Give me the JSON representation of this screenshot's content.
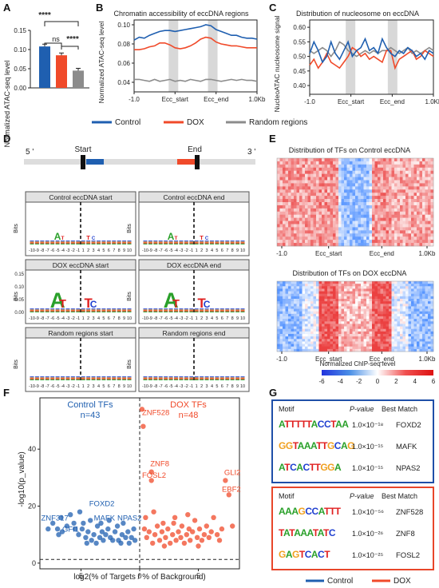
{
  "panels": {
    "A": "A",
    "B": "B",
    "C": "C",
    "D": "D",
    "E": "E",
    "F": "F",
    "G": "G"
  },
  "colors": {
    "control": "#1f5fb0",
    "dox": "#f04a2a",
    "random": "#8c8c8c",
    "shade": "#d8d8d8"
  },
  "chart_data": [
    {
      "id": "A",
      "type": "bar",
      "ylabel": "Normalized ATAC-seq level",
      "categories": [
        "Control",
        "DOX",
        "Random regions"
      ],
      "values": [
        0.108,
        0.085,
        0.045
      ],
      "ylim": [
        0,
        0.15
      ],
      "yticks": [
        "0.00",
        "0.05",
        "0.10",
        "0.15"
      ],
      "significance": [
        "ns",
        "****",
        "****"
      ]
    },
    {
      "id": "B",
      "type": "line",
      "title": "Chromatin accessibility of eccDNA regions",
      "ylabel": "Normalized ATAC-seq level",
      "xticks": [
        "-1.0",
        "Ecc_start",
        "Ecc_end",
        "1.0Kb"
      ],
      "yticks": [
        "0.04",
        "0.06",
        "0.08",
        "0.10"
      ],
      "ylim": [
        0.03,
        0.105
      ],
      "series": [
        {
          "name": "Control",
          "values": [
            0.084,
            0.087,
            0.086,
            0.089,
            0.091,
            0.093,
            0.094,
            0.094,
            0.093,
            0.094,
            0.095,
            0.096,
            0.097,
            0.098,
            0.1,
            0.099,
            0.095,
            0.093,
            0.091,
            0.089,
            0.089,
            0.087,
            0.086,
            0.086,
            0.085
          ]
        },
        {
          "name": "DOX",
          "values": [
            0.074,
            0.074,
            0.075,
            0.077,
            0.078,
            0.081,
            0.081,
            0.079,
            0.076,
            0.075,
            0.076,
            0.078,
            0.081,
            0.085,
            0.087,
            0.086,
            0.082,
            0.08,
            0.079,
            0.078,
            0.078,
            0.077,
            0.076,
            0.076,
            0.076
          ]
        },
        {
          "name": "Random regions",
          "values": [
            0.043,
            0.043,
            0.042,
            0.041,
            0.043,
            0.041,
            0.042,
            0.043,
            0.041,
            0.042,
            0.041,
            0.043,
            0.042,
            0.041,
            0.043,
            0.043,
            0.042,
            0.041,
            0.042,
            0.043,
            0.042,
            0.043,
            0.042,
            0.042,
            0.041
          ]
        }
      ]
    },
    {
      "id": "C",
      "type": "line",
      "title": "Distribution of nucleosome on eccDNA",
      "ylabel": "NucleoATAC nucleosome signal",
      "xticks": [
        "-1.0",
        "Ecc_start",
        "Ecc_end",
        "1.0Kb"
      ],
      "yticks": [
        "0.40",
        "0.45",
        "0.50",
        "0.55",
        "0.60"
      ],
      "ylim": [
        0.37,
        0.625
      ],
      "series": [
        {
          "name": "Control",
          "values": [
            0.51,
            0.55,
            0.52,
            0.48,
            0.5,
            0.55,
            0.51,
            0.49,
            0.52,
            0.55,
            0.5,
            0.52,
            0.53,
            0.56,
            0.52,
            0.53,
            0.51,
            0.56,
            0.53,
            0.51,
            0.5,
            0.52,
            0.51,
            0.53,
            0.52,
            0.5,
            0.51,
            0.49,
            0.52,
            0.51
          ]
        },
        {
          "name": "DOX",
          "values": [
            0.47,
            0.49,
            0.46,
            0.48,
            0.51,
            0.48,
            0.47,
            0.46,
            0.48,
            0.5,
            0.53,
            0.52,
            0.5,
            0.51,
            0.49,
            0.5,
            0.49,
            0.48,
            0.52,
            0.52,
            0.46,
            0.49,
            0.5,
            0.51,
            0.52,
            0.49,
            0.5,
            0.52,
            0.51,
            0.5
          ]
        },
        {
          "name": "Random regions",
          "values": [
            0.52,
            0.51,
            0.52,
            0.53,
            0.52,
            0.5,
            0.52,
            0.55,
            0.54,
            0.52,
            0.51,
            0.5,
            0.51,
            0.52,
            0.51,
            0.52,
            0.51,
            0.52,
            0.52,
            0.53,
            0.52,
            0.51,
            0.52,
            0.53,
            0.51,
            0.52,
            0.51,
            0.52,
            0.53,
            0.52
          ]
        }
      ]
    },
    {
      "id": "F",
      "type": "scatter",
      "xlabel": "log2(% of Targets / % of Background)",
      "ylabel": "-log10(p_value)",
      "xticks": [
        "5",
        "0",
        "5"
      ],
      "yticks": [
        "0",
        "20",
        "40"
      ],
      "xlim": [
        -8.5,
        8.5
      ],
      "ylim": [
        -2,
        58
      ],
      "threshold_y": 1.3,
      "series": [
        {
          "name": "Control TFs",
          "points": [
            [
              -7.8,
              12
            ],
            [
              -7.4,
              14
            ],
            [
              -7.0,
              12
            ],
            [
              -6.7,
              16
            ],
            [
              -6.6,
              11
            ],
            [
              -6.2,
              13
            ],
            [
              -5.9,
              17
            ],
            [
              -5.6,
              14
            ],
            [
              -5.5,
              12
            ],
            [
              -5.1,
              18
            ],
            [
              -4.9,
              12
            ],
            [
              -4.8,
              14
            ],
            [
              -4.6,
              9
            ],
            [
              -4.4,
              11
            ],
            [
              -4.2,
              15
            ],
            [
              -4.1,
              8
            ],
            [
              -3.9,
              10
            ],
            [
              -3.6,
              13
            ],
            [
              -3.4,
              9
            ],
            [
              -3.2,
              11
            ],
            [
              -3.1,
              8
            ],
            [
              -2.9,
              10
            ],
            [
              -2.7,
              12
            ],
            [
              -2.5,
              9
            ],
            [
              -2.3,
              8
            ],
            [
              -2.1,
              11
            ],
            [
              -1.9,
              13
            ],
            [
              -1.8,
              8
            ],
            [
              -1.5,
              10
            ],
            [
              -1.4,
              14
            ],
            [
              -1.2,
              9
            ],
            [
              -1.0,
              11
            ],
            [
              -0.9,
              7
            ],
            [
              -0.7,
              9
            ],
            [
              -0.5,
              12
            ],
            [
              -3.7,
              7
            ],
            [
              -6.9,
              10
            ],
            [
              -2.6,
              15
            ],
            [
              -5.2,
              10
            ],
            [
              -1.6,
              7
            ],
            [
              -3.3,
              14
            ],
            [
              -0.4,
              8
            ],
            [
              -4.5,
              7
            ]
          ]
        },
        {
          "name": "DOX TFs",
          "points": [
            [
              0.2,
              54
            ],
            [
              0.3,
              48
            ],
            [
              1.0,
              32
            ],
            [
              1.0,
              29
            ],
            [
              0.4,
              12
            ],
            [
              0.6,
              9
            ],
            [
              0.8,
              11
            ],
            [
              1.1,
              7
            ],
            [
              1.3,
              10
            ],
            [
              1.5,
              13
            ],
            [
              1.7,
              8
            ],
            [
              1.9,
              11
            ],
            [
              2.1,
              6
            ],
            [
              2.2,
              9
            ],
            [
              2.4,
              12
            ],
            [
              2.6,
              7
            ],
            [
              2.8,
              10
            ],
            [
              2.9,
              14
            ],
            [
              3.1,
              8
            ],
            [
              3.3,
              11
            ],
            [
              3.5,
              9
            ],
            [
              3.6,
              13
            ],
            [
              3.8,
              7
            ],
            [
              4.0,
              10
            ],
            [
              4.2,
              12
            ],
            [
              4.3,
              8
            ],
            [
              4.5,
              11
            ],
            [
              4.7,
              15
            ],
            [
              4.9,
              9
            ],
            [
              5.1,
              12
            ],
            [
              5.3,
              8
            ],
            [
              5.5,
              10
            ],
            [
              5.7,
              13
            ],
            [
              5.9,
              9
            ],
            [
              6.1,
              11
            ],
            [
              6.3,
              16
            ],
            [
              6.6,
              10
            ],
            [
              7.0,
              12
            ],
            [
              7.3,
              29
            ],
            [
              7.6,
              24
            ],
            [
              7.9,
              13
            ],
            [
              0.5,
              16
            ],
            [
              1.2,
              18
            ],
            [
              2.0,
              14
            ],
            [
              3.0,
              16
            ],
            [
              4.1,
              17
            ],
            [
              5.0,
              6
            ],
            [
              6.8,
              8
            ]
          ]
        }
      ]
    }
  ],
  "A": {
    "cats": [
      "Control",
      "DOX",
      "Random regions"
    ],
    "sig_ns": "ns",
    "sig": "****"
  },
  "B": {
    "title": "Chromatin accessibility of eccDNA regions",
    "ylabel": "Normalized ATAC-seq level"
  },
  "C": {
    "title": "Distribution of nucleosome on eccDNA",
    "ylabel": "NucleoATAC nucleosome signal"
  },
  "legend1": {
    "control": "Control",
    "dox": "DOX",
    "random": "Random regions"
  },
  "D": {
    "five": "5 '",
    "three": "3 '",
    "start": "Start",
    "end": "End",
    "ylabel": "Bits",
    "yticks_big": [
      "0.00",
      "0.05",
      "0.10",
      "0.15"
    ],
    "xticks": [
      "-10",
      "-9",
      "-8",
      "-7",
      "-6",
      "-5",
      "-4",
      "-3",
      "-2",
      "-1",
      "1",
      "2",
      "3",
      "4",
      "5",
      "6",
      "7",
      "8",
      "9",
      "10"
    ],
    "boxes": [
      "Control eccDNA start",
      "Control eccDNA end",
      "DOX eccDNA start",
      "DOX eccDNA end",
      "Random regions start",
      "Random regions end"
    ],
    "motif_letters": {
      "A": "A",
      "T": "T",
      "C": "C",
      "G": "G"
    }
  },
  "E": {
    "title1": "Distribution of TFs on Control eccDNA",
    "title2": "Distribution of TFs on DOX eccDNA",
    "xticks": [
      "-1.0",
      "Ecc_start",
      "Ecc_end",
      "1.0Kb"
    ],
    "cbar_label": "Normalized ChIP-seq level",
    "cbar_ticks": [
      "-6",
      "-4",
      "-2",
      "0",
      "2",
      "4",
      "6"
    ]
  },
  "F": {
    "control_label": "Control TFs",
    "control_n": "n=43",
    "dox_label": "DOX TFs",
    "dox_n": "n=48",
    "ctrl_labels": [
      "FOXD2",
      "ZNF317",
      "GFI1",
      "MAFK",
      "NPAS2"
    ],
    "dox_labels": [
      "ZNF528",
      "ZNF8",
      "FOSL2",
      "GLI2",
      "EBF2"
    ]
  },
  "G": {
    "h_motif": "Motif",
    "h_p": "P-value",
    "h_bm": "Best Match",
    "ctrl_rows": [
      {
        "motif": "ATTTTTACCTAA",
        "p": "1.0×10⁻¹⁸",
        "match": "FOXD2"
      },
      {
        "motif": "GGTAAATTGCAG",
        "p": "1.0×10⁻¹⁵",
        "match": "MAFK"
      },
      {
        "motif": "ATCACTTGGA",
        "p": "1.0×10⁻¹⁵",
        "match": "NPAS2"
      }
    ],
    "dox_rows": [
      {
        "motif": "AAAGCCATTT",
        "p": "1.0×10⁻⁵⁶",
        "match": "ZNF528"
      },
      {
        "motif": "TATAAATATC",
        "p": "1.0×10⁻²⁶",
        "match": "ZNF8"
      },
      {
        "motif": "GAGTCACT",
        "p": "1.0×10⁻²⁵",
        "match": "FOSL2"
      }
    ]
  },
  "legend2": {
    "control": "Control",
    "dox": "DOX"
  }
}
